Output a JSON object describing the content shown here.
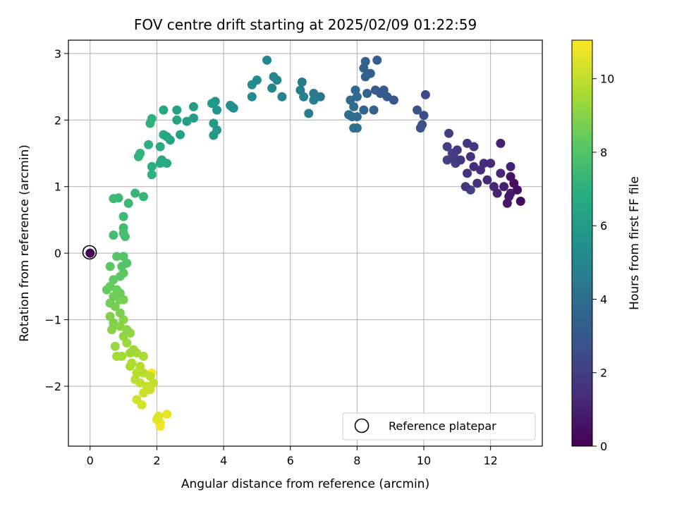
{
  "chart_data": {
    "type": "scatter",
    "title": "FOV centre drift starting at 2025/02/09 01:22:59",
    "xlabel": "Angular distance from reference (arcmin)",
    "ylabel": "Rotation from reference (arcmin)",
    "xlim": [
      -0.65,
      13.55
    ],
    "ylim": [
      -2.9,
      3.2
    ],
    "xticks": [
      0,
      2,
      4,
      6,
      8,
      10,
      12
    ],
    "xtick_labels": [
      "0",
      "2",
      "4",
      "6",
      "8",
      "10",
      "12"
    ],
    "yticks": [
      -2,
      -1,
      0,
      1,
      2,
      3
    ],
    "ytick_labels": [
      "−2",
      "−1",
      "0",
      "1",
      "2",
      "3"
    ],
    "grid": true,
    "colorbar": {
      "label": "Hours from first FF file",
      "range": [
        0,
        11.05
      ],
      "ticks": [
        0,
        2,
        4,
        6,
        8,
        10
      ],
      "tick_labels": [
        "0",
        "2",
        "4",
        "6",
        "8",
        "10"
      ],
      "colormap": "viridis"
    },
    "legend": {
      "placement": "lower-right",
      "entries": [
        {
          "label": "Reference platepar",
          "marker": "open-circle"
        }
      ]
    },
    "reference_point": {
      "x": 0,
      "y": 0,
      "hours": 0
    },
    "points": [
      {
        "x": 12.9,
        "y": 0.78,
        "h": 0.3
      },
      {
        "x": 12.7,
        "y": 1.05,
        "h": 0.4
      },
      {
        "x": 12.8,
        "y": 0.95,
        "h": 0.5
      },
      {
        "x": 12.6,
        "y": 1.15,
        "h": 0.6
      },
      {
        "x": 12.5,
        "y": 0.75,
        "h": 0.7
      },
      {
        "x": 12.55,
        "y": 0.85,
        "h": 0.8
      },
      {
        "x": 12.4,
        "y": 1.0,
        "h": 0.9
      },
      {
        "x": 12.6,
        "y": 0.9,
        "h": 1.0
      },
      {
        "x": 12.3,
        "y": 1.65,
        "h": 1.0
      },
      {
        "x": 12.6,
        "y": 1.3,
        "h": 1.1
      },
      {
        "x": 12.2,
        "y": 0.9,
        "h": 1.1
      },
      {
        "x": 12.1,
        "y": 1.0,
        "h": 1.2
      },
      {
        "x": 12.3,
        "y": 1.2,
        "h": 1.2
      },
      {
        "x": 12.0,
        "y": 1.35,
        "h": 1.3
      },
      {
        "x": 11.9,
        "y": 1.1,
        "h": 1.3
      },
      {
        "x": 11.7,
        "y": 1.25,
        "h": 1.4
      },
      {
        "x": 11.8,
        "y": 1.35,
        "h": 1.4
      },
      {
        "x": 11.6,
        "y": 1.05,
        "h": 1.5
      },
      {
        "x": 11.5,
        "y": 1.3,
        "h": 1.5
      },
      {
        "x": 11.4,
        "y": 1.45,
        "h": 1.6
      },
      {
        "x": 11.3,
        "y": 1.2,
        "h": 1.6
      },
      {
        "x": 11.25,
        "y": 1.0,
        "h": 1.7
      },
      {
        "x": 11.5,
        "y": 1.6,
        "h": 1.7
      },
      {
        "x": 11.3,
        "y": 1.65,
        "h": 1.8
      },
      {
        "x": 11.1,
        "y": 1.4,
        "h": 1.8
      },
      {
        "x": 11.0,
        "y": 1.55,
        "h": 1.9
      },
      {
        "x": 10.9,
        "y": 1.45,
        "h": 1.9
      },
      {
        "x": 10.75,
        "y": 1.8,
        "h": 2.0
      },
      {
        "x": 10.7,
        "y": 1.6,
        "h": 2.0
      },
      {
        "x": 10.7,
        "y": 1.4,
        "h": 2.1
      },
      {
        "x": 10.95,
        "y": 1.35,
        "h": 2.1
      },
      {
        "x": 11.4,
        "y": 0.95,
        "h": 2.2
      },
      {
        "x": 10.85,
        "y": 1.5,
        "h": 2.2
      },
      {
        "x": 10.05,
        "y": 2.38,
        "h": 2.5
      },
      {
        "x": 10.0,
        "y": 2.07,
        "h": 2.6
      },
      {
        "x": 9.95,
        "y": 1.93,
        "h": 2.7
      },
      {
        "x": 9.8,
        "y": 2.15,
        "h": 2.8
      },
      {
        "x": 9.9,
        "y": 1.88,
        "h": 2.9
      },
      {
        "x": 9.1,
        "y": 2.3,
        "h": 3.0
      },
      {
        "x": 8.7,
        "y": 2.4,
        "h": 3.1
      },
      {
        "x": 8.8,
        "y": 2.45,
        "h": 3.1
      },
      {
        "x": 8.9,
        "y": 2.35,
        "h": 3.2
      },
      {
        "x": 8.55,
        "y": 2.45,
        "h": 3.2
      },
      {
        "x": 8.4,
        "y": 2.7,
        "h": 3.3
      },
      {
        "x": 8.6,
        "y": 2.9,
        "h": 3.3
      },
      {
        "x": 8.25,
        "y": 2.65,
        "h": 3.4
      },
      {
        "x": 8.2,
        "y": 2.78,
        "h": 3.4
      },
      {
        "x": 8.25,
        "y": 2.88,
        "h": 3.5
      },
      {
        "x": 8.3,
        "y": 2.4,
        "h": 3.5
      },
      {
        "x": 8.5,
        "y": 2.15,
        "h": 3.6
      },
      {
        "x": 8.2,
        "y": 2.15,
        "h": 3.6
      },
      {
        "x": 8.0,
        "y": 2.35,
        "h": 3.7
      },
      {
        "x": 7.95,
        "y": 2.45,
        "h": 3.7
      },
      {
        "x": 7.8,
        "y": 2.3,
        "h": 3.8
      },
      {
        "x": 7.9,
        "y": 2.2,
        "h": 3.8
      },
      {
        "x": 7.75,
        "y": 2.08,
        "h": 3.9
      },
      {
        "x": 8.0,
        "y": 2.05,
        "h": 3.9
      },
      {
        "x": 7.9,
        "y": 1.88,
        "h": 4.0
      },
      {
        "x": 8.0,
        "y": 1.88,
        "h": 4.0
      },
      {
        "x": 7.85,
        "y": 2.05,
        "h": 4.1
      },
      {
        "x": 6.9,
        "y": 2.35,
        "h": 4.3
      },
      {
        "x": 6.7,
        "y": 2.4,
        "h": 4.4
      },
      {
        "x": 6.35,
        "y": 2.57,
        "h": 4.5
      },
      {
        "x": 6.3,
        "y": 2.45,
        "h": 4.6
      },
      {
        "x": 6.4,
        "y": 2.35,
        "h": 4.7
      },
      {
        "x": 6.55,
        "y": 2.1,
        "h": 4.7
      },
      {
        "x": 6.7,
        "y": 2.3,
        "h": 4.8
      },
      {
        "x": 5.75,
        "y": 2.35,
        "h": 4.9
      },
      {
        "x": 5.6,
        "y": 2.6,
        "h": 5.0
      },
      {
        "x": 5.5,
        "y": 2.65,
        "h": 5.0
      },
      {
        "x": 5.3,
        "y": 2.9,
        "h": 5.1
      },
      {
        "x": 5.45,
        "y": 2.48,
        "h": 5.1
      },
      {
        "x": 5.0,
        "y": 2.6,
        "h": 5.2
      },
      {
        "x": 4.85,
        "y": 2.53,
        "h": 5.3
      },
      {
        "x": 4.85,
        "y": 2.35,
        "h": 5.3
      },
      {
        "x": 4.3,
        "y": 2.18,
        "h": 5.5
      },
      {
        "x": 4.2,
        "y": 2.22,
        "h": 5.5
      },
      {
        "x": 4.25,
        "y": 2.2,
        "h": 5.6
      },
      {
        "x": 3.8,
        "y": 2.15,
        "h": 5.7
      },
      {
        "x": 3.75,
        "y": 2.28,
        "h": 5.8
      },
      {
        "x": 3.65,
        "y": 2.25,
        "h": 5.8
      },
      {
        "x": 3.8,
        "y": 1.85,
        "h": 5.9
      },
      {
        "x": 3.7,
        "y": 1.77,
        "h": 5.9
      },
      {
        "x": 3.7,
        "y": 1.95,
        "h": 6.0
      },
      {
        "x": 3.1,
        "y": 2.2,
        "h": 6.1
      },
      {
        "x": 3.1,
        "y": 2.03,
        "h": 6.1
      },
      {
        "x": 2.9,
        "y": 1.98,
        "h": 6.2
      },
      {
        "x": 2.7,
        "y": 1.78,
        "h": 6.3
      },
      {
        "x": 2.6,
        "y": 2.15,
        "h": 6.3
      },
      {
        "x": 2.6,
        "y": 2.0,
        "h": 6.4
      },
      {
        "x": 2.4,
        "y": 1.7,
        "h": 6.5
      },
      {
        "x": 2.3,
        "y": 1.75,
        "h": 6.5
      },
      {
        "x": 2.2,
        "y": 1.78,
        "h": 6.6
      },
      {
        "x": 2.2,
        "y": 2.15,
        "h": 6.6
      },
      {
        "x": 2.3,
        "y": 1.35,
        "h": 6.7
      },
      {
        "x": 2.15,
        "y": 1.4,
        "h": 6.7
      },
      {
        "x": 2.1,
        "y": 1.35,
        "h": 6.8
      },
      {
        "x": 2.1,
        "y": 1.6,
        "h": 6.8
      },
      {
        "x": 1.85,
        "y": 1.3,
        "h": 6.9
      },
      {
        "x": 1.85,
        "y": 1.18,
        "h": 7.0
      },
      {
        "x": 1.75,
        "y": 1.63,
        "h": 7.0
      },
      {
        "x": 1.85,
        "y": 2.02,
        "h": 7.1
      },
      {
        "x": 1.8,
        "y": 1.95,
        "h": 7.1
      },
      {
        "x": 1.5,
        "y": 1.5,
        "h": 7.2
      },
      {
        "x": 1.45,
        "y": 1.45,
        "h": 7.2
      },
      {
        "x": 1.6,
        "y": 0.85,
        "h": 7.3
      },
      {
        "x": 1.35,
        "y": 0.9,
        "h": 7.3
      },
      {
        "x": 1.15,
        "y": 0.75,
        "h": 7.4
      },
      {
        "x": 0.85,
        "y": 0.83,
        "h": 7.4
      },
      {
        "x": 0.7,
        "y": 0.82,
        "h": 7.5
      },
      {
        "x": 1.0,
        "y": 0.55,
        "h": 7.5
      },
      {
        "x": 0.7,
        "y": 0.27,
        "h": 7.6
      },
      {
        "x": 1.0,
        "y": 0.38,
        "h": 7.6
      },
      {
        "x": 1.0,
        "y": 0.3,
        "h": 7.7
      },
      {
        "x": 1.05,
        "y": 0.25,
        "h": 7.7
      },
      {
        "x": 1.1,
        "y": -0.15,
        "h": 8.0
      },
      {
        "x": 1.0,
        "y": -0.05,
        "h": 8.0
      },
      {
        "x": 0.8,
        "y": -0.05,
        "h": 8.1
      },
      {
        "x": 0.95,
        "y": -0.2,
        "h": 8.1
      },
      {
        "x": 1.0,
        "y": -0.3,
        "h": 8.2
      },
      {
        "x": 0.6,
        "y": -0.2,
        "h": 8.2
      },
      {
        "x": 0.9,
        "y": -0.35,
        "h": 8.3
      },
      {
        "x": 0.7,
        "y": -0.4,
        "h": 8.3
      },
      {
        "x": 0.6,
        "y": -0.5,
        "h": 8.4
      },
      {
        "x": 0.5,
        "y": -0.55,
        "h": 8.4
      },
      {
        "x": 0.8,
        "y": -0.55,
        "h": 8.5
      },
      {
        "x": 0.9,
        "y": -0.6,
        "h": 8.5
      },
      {
        "x": 0.7,
        "y": -0.65,
        "h": 8.6
      },
      {
        "x": 0.6,
        "y": -0.75,
        "h": 8.6
      },
      {
        "x": 0.9,
        "y": -0.7,
        "h": 8.7
      },
      {
        "x": 1.0,
        "y": -0.7,
        "h": 8.7
      },
      {
        "x": 0.75,
        "y": -0.8,
        "h": 8.8
      },
      {
        "x": 0.9,
        "y": -0.9,
        "h": 8.8
      },
      {
        "x": 0.6,
        "y": -0.95,
        "h": 8.9
      },
      {
        "x": 0.7,
        "y": -1.05,
        "h": 8.9
      },
      {
        "x": 1.0,
        "y": -1.0,
        "h": 9.0
      },
      {
        "x": 0.65,
        "y": -1.15,
        "h": 9.0
      },
      {
        "x": 0.9,
        "y": -1.1,
        "h": 9.1
      },
      {
        "x": 1.1,
        "y": -1.15,
        "h": 9.1
      },
      {
        "x": 1.0,
        "y": -1.25,
        "h": 9.2
      },
      {
        "x": 1.2,
        "y": -1.2,
        "h": 9.2
      },
      {
        "x": 0.75,
        "y": -1.4,
        "h": 9.3
      },
      {
        "x": 1.1,
        "y": -1.35,
        "h": 9.3
      },
      {
        "x": 1.3,
        "y": -1.45,
        "h": 9.4
      },
      {
        "x": 1.2,
        "y": -1.5,
        "h": 9.4
      },
      {
        "x": 0.95,
        "y": -1.55,
        "h": 9.5
      },
      {
        "x": 0.8,
        "y": -1.55,
        "h": 9.5
      },
      {
        "x": 1.4,
        "y": -1.5,
        "h": 9.6
      },
      {
        "x": 1.6,
        "y": -1.55,
        "h": 9.6
      },
      {
        "x": 1.25,
        "y": -1.65,
        "h": 9.7
      },
      {
        "x": 1.2,
        "y": -1.7,
        "h": 9.7
      },
      {
        "x": 1.5,
        "y": -1.7,
        "h": 9.8
      },
      {
        "x": 1.4,
        "y": -1.8,
        "h": 9.8
      },
      {
        "x": 1.6,
        "y": -1.8,
        "h": 9.9
      },
      {
        "x": 1.35,
        "y": -1.9,
        "h": 9.9
      },
      {
        "x": 1.5,
        "y": -1.95,
        "h": 10.0
      },
      {
        "x": 1.8,
        "y": -1.85,
        "h": 10.0
      },
      {
        "x": 1.7,
        "y": -2.0,
        "h": 10.1
      },
      {
        "x": 1.9,
        "y": -1.95,
        "h": 10.1
      },
      {
        "x": 1.6,
        "y": -2.1,
        "h": 10.2
      },
      {
        "x": 1.8,
        "y": -2.05,
        "h": 10.2
      },
      {
        "x": 1.4,
        "y": -2.2,
        "h": 10.3
      },
      {
        "x": 1.55,
        "y": -2.28,
        "h": 10.3
      },
      {
        "x": 2.05,
        "y": -2.45,
        "h": 10.5
      },
      {
        "x": 2.0,
        "y": -2.5,
        "h": 10.6
      },
      {
        "x": 2.3,
        "y": -2.42,
        "h": 10.7
      },
      {
        "x": 2.1,
        "y": -2.55,
        "h": 10.8
      },
      {
        "x": 2.1,
        "y": -2.6,
        "h": 10.9
      },
      {
        "x": 1.85,
        "y": -1.8,
        "h": 11.0
      }
    ]
  }
}
